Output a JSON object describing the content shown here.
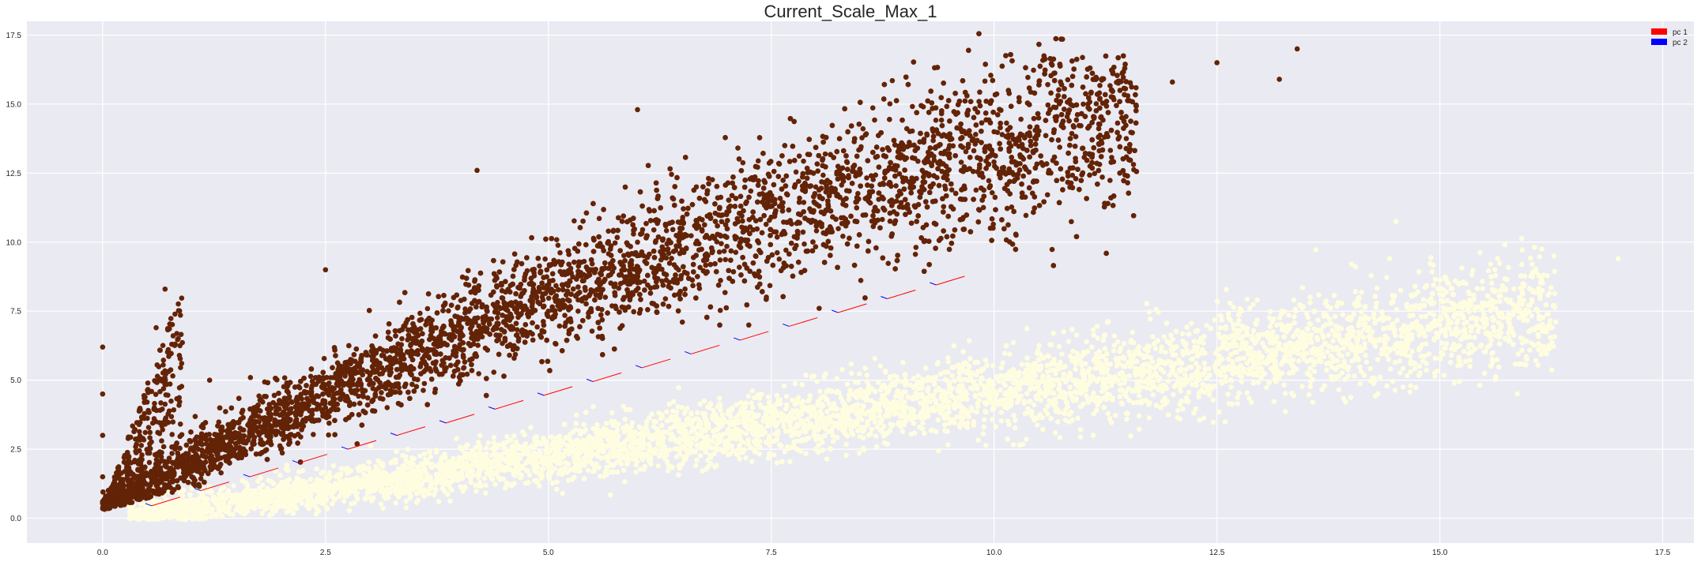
{
  "chart_data": {
    "type": "scatter",
    "title": "Current_Scale_Max_1",
    "xlabel": "",
    "ylabel": "",
    "xlim": [
      -0.85,
      17.85
    ],
    "ylim": [
      -0.9,
      18.0
    ],
    "x_ticks": [
      0.0,
      2.5,
      5.0,
      7.5,
      10.0,
      12.5,
      15.0,
      17.5
    ],
    "y_ticks": [
      0.0,
      2.5,
      5.0,
      7.5,
      10.0,
      12.5,
      15.0,
      17.5
    ],
    "x_tick_labels": [
      "0.0",
      "2.5",
      "5.0",
      "7.5",
      "10.0",
      "12.5",
      "15.0",
      "17.5"
    ],
    "y_tick_labels": [
      "0.0",
      "2.5",
      "5.0",
      "7.5",
      "10.0",
      "12.5",
      "15.0",
      "17.5"
    ],
    "grid": true,
    "legend_position": "top-right",
    "legend": [
      {
        "label": "pc 1",
        "color": "#ff0000"
      },
      {
        "label": "pc 2",
        "color": "#0000ff"
      }
    ],
    "colors": {
      "background": "#eaeaf2",
      "grid": "#ffffff",
      "series_dark": "#632306",
      "series_light": "#fffde0",
      "arrow_red": "#ff0000",
      "arrow_blue": "#0000ff"
    },
    "series": [
      {
        "color": "#632306",
        "approx_points": [
          [
            0.0,
            0.35
          ],
          [
            0.0,
            1.5
          ],
          [
            0.0,
            3.0
          ],
          [
            0.0,
            4.5
          ],
          [
            0.0,
            6.2
          ],
          [
            0.5,
            0.8
          ],
          [
            0.6,
            6.9
          ],
          [
            0.7,
            8.3
          ],
          [
            1.0,
            1.5
          ],
          [
            1.2,
            5.0
          ],
          [
            1.5,
            3.0
          ],
          [
            2.0,
            2.5
          ],
          [
            2.5,
            4.0
          ],
          [
            2.5,
            9.0
          ],
          [
            3.0,
            5.0
          ],
          [
            3.5,
            6.0
          ],
          [
            4.0,
            7.0
          ],
          [
            4.2,
            12.6
          ],
          [
            5.0,
            7.5
          ],
          [
            5.5,
            9.0
          ],
          [
            6.0,
            10.0
          ],
          [
            6.0,
            14.8
          ],
          [
            6.5,
            10.5
          ],
          [
            7.0,
            11.0
          ],
          [
            7.5,
            11.5
          ],
          [
            8.0,
            12.0
          ],
          [
            8.5,
            12.5
          ],
          [
            9.0,
            13.0
          ],
          [
            9.5,
            13.5
          ],
          [
            10.0,
            14.0
          ],
          [
            10.5,
            14.5
          ],
          [
            11.0,
            15.0
          ],
          [
            11.5,
            15.3
          ],
          [
            12.0,
            15.8
          ],
          [
            12.5,
            16.5
          ],
          [
            13.2,
            15.9
          ],
          [
            13.4,
            17.0
          ]
        ]
      },
      {
        "color": "#fffde0",
        "approx_points": [
          [
            0.3,
            0.0
          ],
          [
            1.0,
            0.3
          ],
          [
            2.0,
            0.7
          ],
          [
            3.0,
            1.1
          ],
          [
            4.0,
            1.5
          ],
          [
            5.0,
            1.9
          ],
          [
            6.0,
            2.3
          ],
          [
            7.0,
            2.8
          ],
          [
            8.0,
            3.2
          ],
          [
            9.0,
            3.7
          ],
          [
            10.0,
            4.2
          ],
          [
            11.0,
            4.7
          ],
          [
            12.0,
            5.3
          ],
          [
            13.0,
            5.8
          ],
          [
            14.0,
            6.3
          ],
          [
            15.0,
            7.0
          ],
          [
            16.0,
            7.5
          ],
          [
            17.0,
            9.4
          ]
        ]
      }
    ],
    "vectors": {
      "pc1_color": "#ff0000",
      "pc2_color": "#0000ff",
      "anchors": [
        [
          0.55,
          0.45
        ],
        [
          1.1,
          1.0
        ],
        [
          1.65,
          1.5
        ],
        [
          2.2,
          2.0
        ],
        [
          2.75,
          2.5
        ],
        [
          3.3,
          3.0
        ],
        [
          3.85,
          3.45
        ],
        [
          4.4,
          3.95
        ],
        [
          4.95,
          4.45
        ],
        [
          5.5,
          4.95
        ],
        [
          6.05,
          5.45
        ],
        [
          6.6,
          5.95
        ],
        [
          7.15,
          6.45
        ],
        [
          7.7,
          6.95
        ],
        [
          8.25,
          7.45
        ],
        [
          8.8,
          7.95
        ],
        [
          9.35,
          8.45
        ]
      ]
    }
  }
}
